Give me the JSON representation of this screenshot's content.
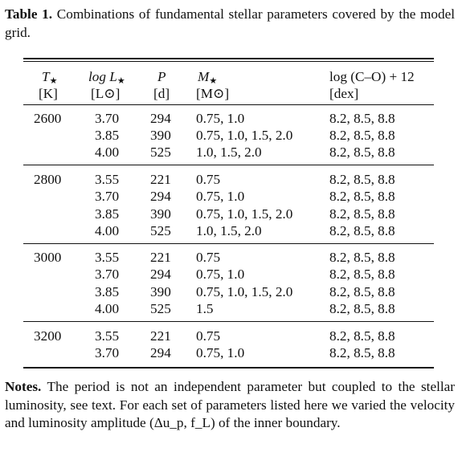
{
  "caption": {
    "label": "Table 1.",
    "text": "Combinations of fundamental stellar parameters covered by the model grid."
  },
  "columns": [
    {
      "symbol": "T",
      "subscript": "★",
      "unit": "[K]"
    },
    {
      "symbol": "log L",
      "subscript": "★",
      "unit": "[L⊙]"
    },
    {
      "symbol": "P",
      "subscript": "",
      "unit": "[d]"
    },
    {
      "symbol": "M",
      "subscript": "★",
      "unit": "[M⊙]"
    },
    {
      "symbol": "log (C–O) + 12",
      "subscript": "",
      "unit": "[dex]"
    }
  ],
  "groups": [
    {
      "temperature": "2600",
      "rows": [
        {
          "logL": "3.70",
          "P": "294",
          "M": "0.75, 1.0",
          "CO": "8.2, 8.5, 8.8"
        },
        {
          "logL": "3.85",
          "P": "390",
          "M": "0.75, 1.0, 1.5, 2.0",
          "CO": "8.2, 8.5, 8.8"
        },
        {
          "logL": "4.00",
          "P": "525",
          "M": "1.0, 1.5, 2.0",
          "CO": "8.2, 8.5, 8.8"
        }
      ]
    },
    {
      "temperature": "2800",
      "rows": [
        {
          "logL": "3.55",
          "P": "221",
          "M": "0.75",
          "CO": "8.2, 8.5, 8.8"
        },
        {
          "logL": "3.70",
          "P": "294",
          "M": "0.75, 1.0",
          "CO": "8.2, 8.5, 8.8"
        },
        {
          "logL": "3.85",
          "P": "390",
          "M": "0.75, 1.0, 1.5, 2.0",
          "CO": "8.2, 8.5, 8.8"
        },
        {
          "logL": "4.00",
          "P": "525",
          "M": "1.0, 1.5, 2.0",
          "CO": "8.2, 8.5, 8.8"
        }
      ]
    },
    {
      "temperature": "3000",
      "rows": [
        {
          "logL": "3.55",
          "P": "221",
          "M": "0.75",
          "CO": "8.2, 8.5, 8.8"
        },
        {
          "logL": "3.70",
          "P": "294",
          "M": "0.75, 1.0",
          "CO": "8.2, 8.5, 8.8"
        },
        {
          "logL": "3.85",
          "P": "390",
          "M": "0.75, 1.0, 1.5, 2.0",
          "CO": "8.2, 8.5, 8.8"
        },
        {
          "logL": "4.00",
          "P": "525",
          "M": "1.5",
          "CO": "8.2, 8.5, 8.8"
        }
      ]
    },
    {
      "temperature": "3200",
      "rows": [
        {
          "logL": "3.55",
          "P": "221",
          "M": "0.75",
          "CO": "8.2, 8.5, 8.8"
        },
        {
          "logL": "3.70",
          "P": "294",
          "M": "0.75, 1.0",
          "CO": "8.2, 8.5, 8.8"
        }
      ]
    }
  ],
  "notes": {
    "label": "Notes.",
    "text": "The period is not an independent parameter but coupled to the stellar luminosity, see text. For each set of parameters listed here we varied the velocity and luminosity amplitude (Δu_p, f_L) of the inner boundary."
  }
}
